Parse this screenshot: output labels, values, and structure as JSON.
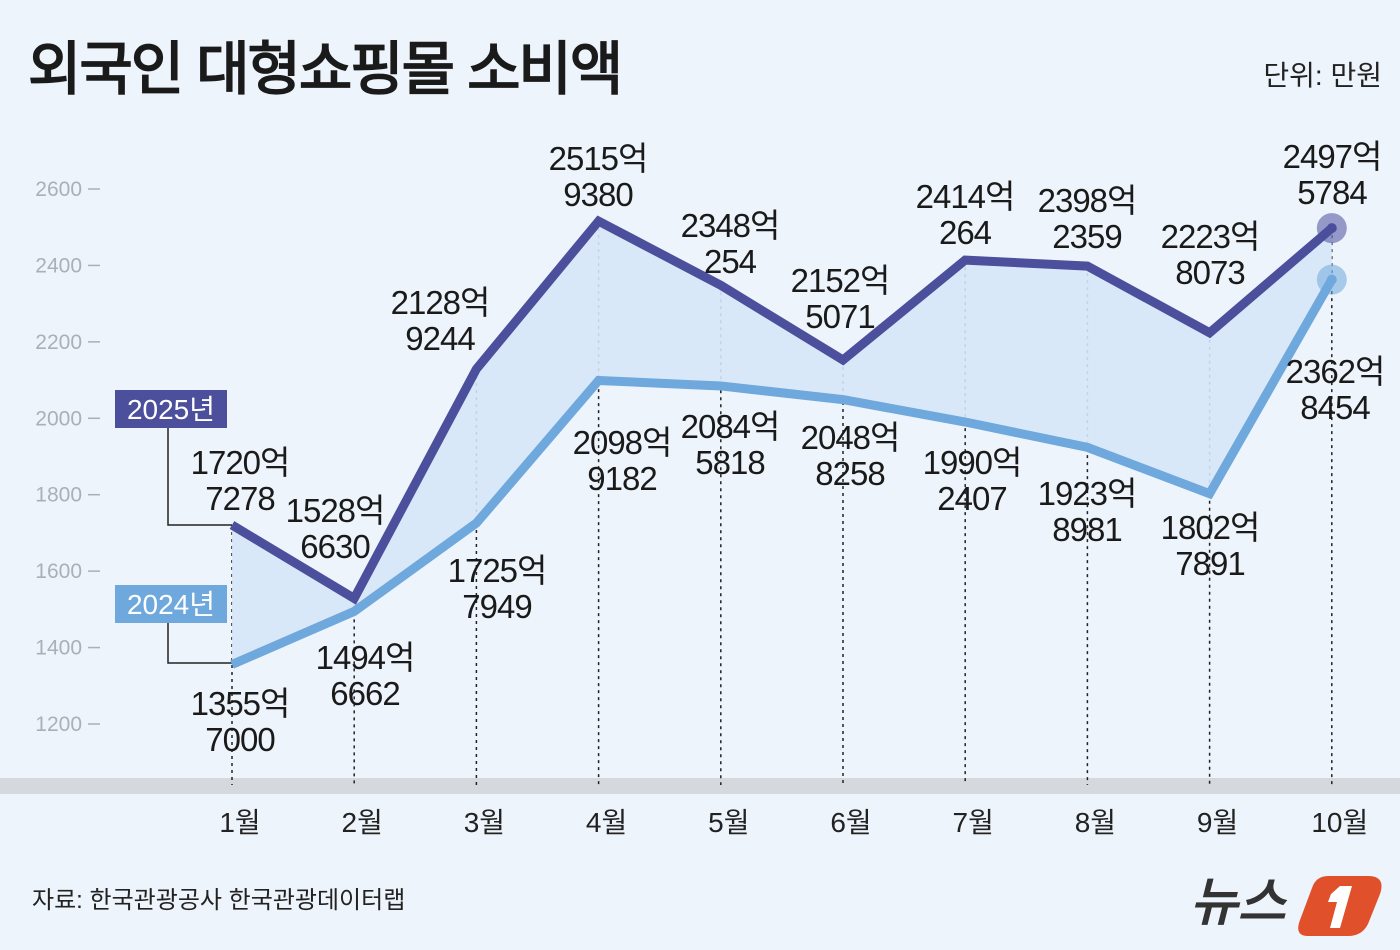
{
  "title": "외국인 대형쇼핑몰 소비액",
  "unit": "단위: 만원",
  "source": "자료: 한국관광공사 한국관광데이터랩",
  "logo_text": "뉴스1",
  "colors": {
    "background": "#edf4fb",
    "series_2025": "#4b4f9c",
    "series_2024": "#6fa8dc",
    "fill_between": "#d6e7f7",
    "logo": "#e0502a"
  },
  "chart_data": {
    "type": "line",
    "title": "외국인 대형쇼핑몰 소비액",
    "ylabel": "",
    "xlabel": "",
    "ylim": [
      1200,
      2600
    ],
    "yticks": [
      1200,
      1400,
      1600,
      1800,
      2000,
      2200,
      2400,
      2600
    ],
    "categories": [
      "1월",
      "2월",
      "3월",
      "4월",
      "5월",
      "6월",
      "7월",
      "8월",
      "9월",
      "10월"
    ],
    "grid": false,
    "series": [
      {
        "name": "2025년",
        "values": [
          1720.7278,
          1528.663,
          2128.9244,
          2515.938,
          2348.0254,
          2152.5071,
          2414.0264,
          2398.2359,
          2223.8073,
          2497.5784
        ],
        "labels": [
          [
            "1720억",
            "7278"
          ],
          [
            "1528억",
            "6630"
          ],
          [
            "2128억",
            "9244"
          ],
          [
            "2515억",
            "9380"
          ],
          [
            "2348억",
            "254"
          ],
          [
            "2152억",
            "5071"
          ],
          [
            "2414억",
            "264"
          ],
          [
            "2398억",
            "2359"
          ],
          [
            "2223억",
            "8073"
          ],
          [
            "2497억",
            "5784"
          ]
        ]
      },
      {
        "name": "2024년",
        "values": [
          1355.7,
          1494.6662,
          1725.7949,
          2098.9182,
          2084.5818,
          2048.8258,
          1990.2407,
          1923.8981,
          1802.7891,
          2362.8454
        ],
        "labels": [
          [
            "1355억",
            "7000"
          ],
          [
            "1494억",
            "6662"
          ],
          [
            "1725억",
            "7949"
          ],
          [
            "2098억",
            "9182"
          ],
          [
            "2084억",
            "5818"
          ],
          [
            "2048억",
            "8258"
          ],
          [
            "1990억",
            "2407"
          ],
          [
            "1923억",
            "8981"
          ],
          [
            "1802억",
            "7891"
          ],
          [
            "2362억",
            "8454"
          ]
        ]
      }
    ]
  }
}
